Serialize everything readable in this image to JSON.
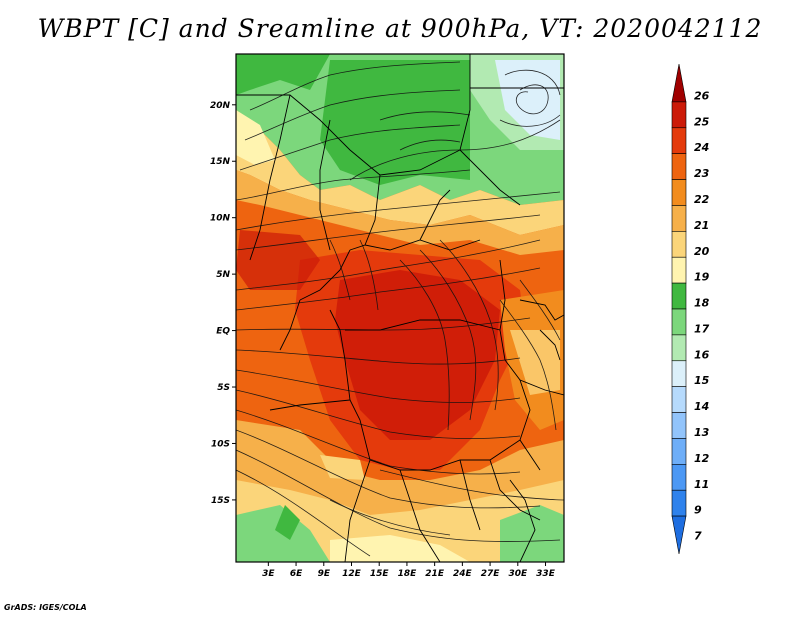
{
  "title": "WBPT [C] and Sreamline at 900hPa, VT: 2020042112",
  "credit": "GrADS: IGES/COLA",
  "map": {
    "lon_range": [
      -0.5,
      35
    ],
    "lat_range": [
      -20.5,
      24.5
    ],
    "lat_ticks": [
      {
        "value": 20,
        "label": "20N"
      },
      {
        "value": 15,
        "label": "15N"
      },
      {
        "value": 10,
        "label": "10N"
      },
      {
        "value": 5,
        "label": "5N"
      },
      {
        "value": 0,
        "label": "EQ"
      },
      {
        "value": -5,
        "label": "5S"
      },
      {
        "value": -10,
        "label": "10S"
      },
      {
        "value": -15,
        "label": "15S"
      }
    ],
    "lon_ticks": [
      {
        "value": 3,
        "label": "3E"
      },
      {
        "value": 6,
        "label": "6E"
      },
      {
        "value": 9,
        "label": "9E"
      },
      {
        "value": 12,
        "label": "12E"
      },
      {
        "value": 15,
        "label": "15E"
      },
      {
        "value": 18,
        "label": "18E"
      },
      {
        "value": 21,
        "label": "21E"
      },
      {
        "value": 24,
        "label": "24E"
      },
      {
        "value": 27,
        "label": "27E"
      },
      {
        "value": 30,
        "label": "30E"
      },
      {
        "value": 33,
        "label": "33E"
      }
    ]
  },
  "colorbar": {
    "levels": [
      "7",
      "9",
      "11",
      "12",
      "13",
      "14",
      "15",
      "16",
      "17",
      "18",
      "19",
      "20",
      "21",
      "22",
      "23",
      "24",
      "25",
      "26"
    ],
    "colors": [
      "#1e6ee0",
      "#2f82ec",
      "#4c98f4",
      "#6eaef8",
      "#92c4fb",
      "#b6dafc",
      "#dcf0fa",
      "#b2eab2",
      "#7cd77c",
      "#40b840",
      "#fff4b0",
      "#fbd57a",
      "#f6b04a",
      "#f28c1e",
      "#ee6410",
      "#e43a0c",
      "#cc1a08",
      "#a00000"
    ]
  }
}
